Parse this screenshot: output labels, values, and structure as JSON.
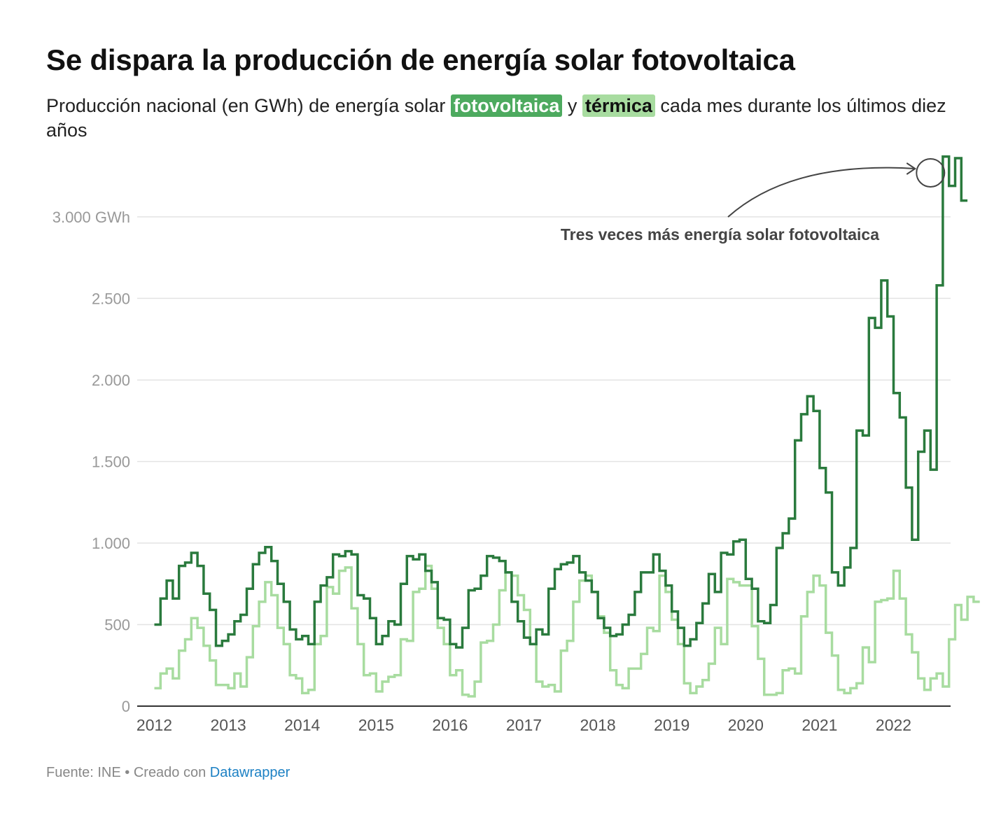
{
  "title": "Se dispara la producción de energía solar fotovoltaica",
  "subtitle": {
    "before": "Producción nacional (en GWh) de energía solar ",
    "pv_label": "fotovoltaica",
    "mid": " y ",
    "thermal_label": "térmica",
    "after": " cada mes durante los últimos diez años"
  },
  "colors": {
    "pv": "#2a7a3d",
    "pv_highlight": "#4daa5f",
    "thermal": "#a8dca0",
    "grid": "#e3e3e3",
    "axis": "#333333",
    "tick": "#999999"
  },
  "chart_data": {
    "type": "line",
    "interpolation": "step",
    "x_start": 2012.0,
    "x_step": 0.0833333,
    "xlim": [
      2011.92,
      2022.65
    ],
    "ylim": [
      0,
      3300
    ],
    "xticks": [
      2012,
      2013,
      2014,
      2015,
      2016,
      2017,
      2018,
      2019,
      2020,
      2021,
      2022
    ],
    "xtick_labels": [
      "2012",
      "2013",
      "2014",
      "2015",
      "2016",
      "2017",
      "2018",
      "2019",
      "2020",
      "2021",
      "2022"
    ],
    "yticks": [
      0,
      500,
      1000,
      1500,
      2000,
      2500,
      3000
    ],
    "ytick_labels": [
      "0",
      "500",
      "1.000",
      "1.500",
      "2.000",
      "2.500",
      "3.000 GWh"
    ],
    "series": [
      {
        "name": "fotovoltaica",
        "values": [
          500,
          660,
          770,
          660,
          860,
          880,
          940,
          860,
          690,
          590,
          370,
          400,
          440,
          520,
          560,
          720,
          870,
          940,
          975,
          890,
          750,
          640,
          470,
          410,
          430,
          380,
          640,
          740,
          790,
          930,
          920,
          950,
          930,
          680,
          660,
          540,
          380,
          430,
          520,
          500,
          750,
          920,
          900,
          930,
          830,
          760,
          540,
          530,
          380,
          360,
          480,
          710,
          720,
          800,
          920,
          910,
          890,
          820,
          640,
          520,
          420,
          380,
          470,
          440,
          720,
          840,
          870,
          880,
          920,
          820,
          770,
          700,
          540,
          480,
          430,
          440,
          500,
          560,
          700,
          820,
          820,
          930,
          830,
          740,
          580,
          480,
          370,
          410,
          510,
          630,
          810,
          700,
          940,
          930,
          1010,
          1020,
          780,
          720,
          520,
          510,
          620,
          970,
          1060,
          1150,
          1630,
          1790,
          1900,
          1810,
          1460,
          1310,
          820,
          740,
          850,
          970,
          1690,
          1660,
          2380,
          2320,
          2610,
          2390,
          1920,
          1770,
          1340,
          1020,
          1560,
          1690,
          1450,
          2580,
          3370,
          3190,
          3360,
          3100
        ]
      },
      {
        "name": "térmica",
        "values": [
          110,
          200,
          230,
          170,
          340,
          410,
          540,
          480,
          370,
          280,
          130,
          130,
          110,
          200,
          120,
          300,
          490,
          640,
          760,
          680,
          480,
          380,
          190,
          170,
          80,
          100,
          380,
          430,
          730,
          690,
          830,
          850,
          600,
          380,
          190,
          200,
          90,
          150,
          180,
          190,
          410,
          400,
          700,
          720,
          860,
          720,
          480,
          380,
          190,
          220,
          70,
          60,
          150,
          390,
          400,
          500,
          710,
          820,
          800,
          680,
          590,
          380,
          150,
          120,
          130,
          90,
          340,
          400,
          640,
          770,
          800,
          700,
          550,
          450,
          220,
          130,
          110,
          230,
          230,
          320,
          480,
          460,
          800,
          700,
          530,
          380,
          140,
          80,
          120,
          160,
          260,
          480,
          380,
          780,
          760,
          740,
          740,
          490,
          290,
          70,
          70,
          80,
          220,
          230,
          200,
          550,
          700,
          800,
          740,
          450,
          310,
          100,
          80,
          110,
          140,
          360,
          270,
          640,
          650,
          660,
          830,
          660,
          440,
          330,
          170,
          100,
          170,
          200,
          120,
          410,
          620,
          530,
          670,
          640
        ]
      }
    ],
    "annotation": {
      "text": "Tres veces más energía solar fotovoltaica",
      "target_year": 2022.5,
      "target_value": 3270
    }
  },
  "footer": {
    "source": "Fuente: INE • Creado con ",
    "brand": "Datawrapper"
  }
}
